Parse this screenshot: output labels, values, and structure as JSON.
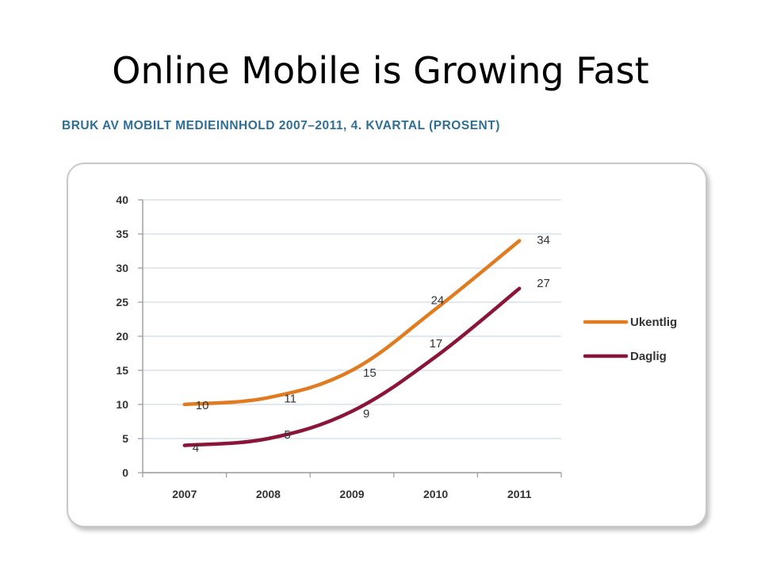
{
  "slide": {
    "title": "Online Mobile is Growing Fast"
  },
  "chart_data": {
    "type": "line",
    "title": "BRUK AV MOBILT MEDIEINNHOLD 2007–2011, 4. KVARTAL (PROSENT)",
    "xlabel": "",
    "ylabel": "",
    "categories": [
      "2007",
      "2008",
      "2009",
      "2010",
      "2011"
    ],
    "ylim": [
      0,
      40
    ],
    "yticks": [
      0,
      5,
      10,
      15,
      20,
      25,
      30,
      35,
      40
    ],
    "grid": true,
    "legend_position": "right",
    "series": [
      {
        "name": "Ukentlig",
        "values": [
          10,
          11,
          15,
          24,
          34
        ],
        "labels": [
          "10",
          "11",
          "15",
          "24",
          "34"
        ],
        "color": "#e07b1f"
      },
      {
        "name": "Daglig",
        "values": [
          4,
          5,
          9,
          17,
          27
        ],
        "labels": [
          "4",
          "5",
          "9",
          "17",
          "27"
        ],
        "color": "#8b1538"
      }
    ],
    "colors": {
      "grid": "#cfdbe8",
      "axis": "#9a9a9a",
      "frame": "#c8c8c8",
      "title": "#2f6f95"
    }
  }
}
